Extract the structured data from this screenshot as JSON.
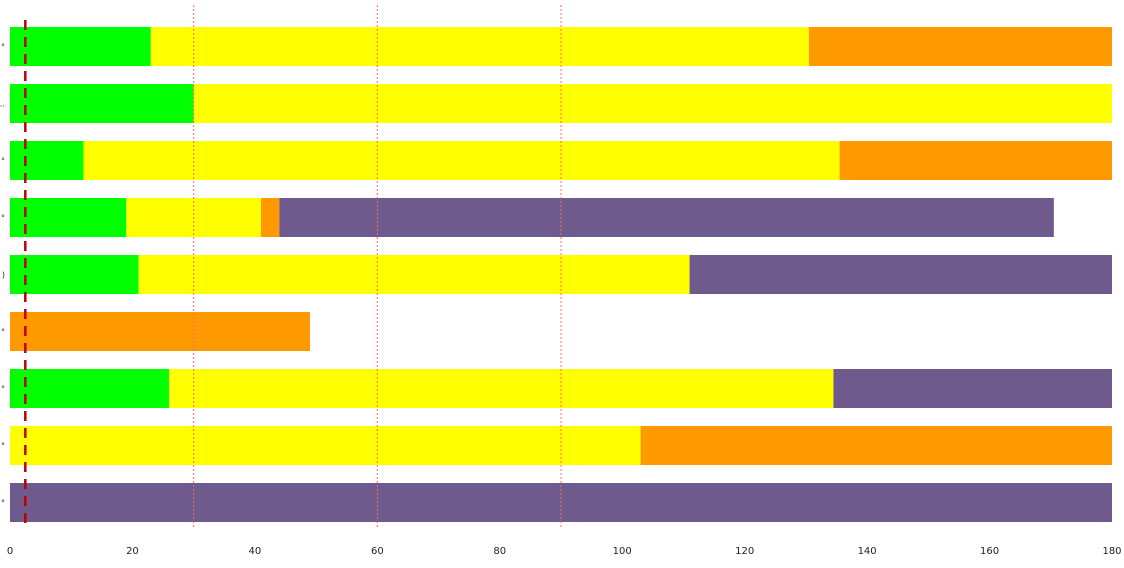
{
  "chart_data": {
    "type": "bar",
    "orientation": "horizontal",
    "stacked": true,
    "title": "",
    "xlabel": "",
    "ylabel": "",
    "xlim": [
      0,
      180
    ],
    "x_ticks": [
      0,
      20,
      40,
      60,
      80,
      100,
      120,
      140,
      160,
      180
    ],
    "row_labels": [
      "°",
      "…",
      "°",
      "°",
      ")",
      "°",
      "°",
      "°",
      "°"
    ],
    "reference_lines": [
      {
        "x": 2.5,
        "style": "dashed",
        "color": "#c00000"
      },
      {
        "x": 30,
        "style": "dotted",
        "color": "#ff6666"
      },
      {
        "x": 60,
        "style": "dotted",
        "color": "#ff6666"
      },
      {
        "x": 90,
        "style": "dotted",
        "color": "#ff6666"
      }
    ],
    "colors": {
      "green": "#00ff00",
      "yellow": "#ffff00",
      "orange": "#ff9900",
      "purple": "#6f5a8e"
    },
    "rows": [
      {
        "segments": [
          {
            "color": "green",
            "start": 0,
            "end": 23
          },
          {
            "color": "yellow",
            "start": 23,
            "end": 130.5
          },
          {
            "color": "orange",
            "start": 130.5,
            "end": 180
          }
        ]
      },
      {
        "segments": [
          {
            "color": "green",
            "start": 0,
            "end": 30
          },
          {
            "color": "yellow",
            "start": 30,
            "end": 180
          }
        ]
      },
      {
        "segments": [
          {
            "color": "green",
            "start": 0,
            "end": 12
          },
          {
            "color": "yellow",
            "start": 12,
            "end": 135.5
          },
          {
            "color": "orange",
            "start": 135.5,
            "end": 180
          }
        ]
      },
      {
        "segments": [
          {
            "color": "green",
            "start": 0,
            "end": 19
          },
          {
            "color": "yellow",
            "start": 19,
            "end": 41
          },
          {
            "color": "orange",
            "start": 41,
            "end": 44
          },
          {
            "color": "purple",
            "start": 44,
            "end": 170.5
          }
        ]
      },
      {
        "segments": [
          {
            "color": "green",
            "start": 0,
            "end": 21
          },
          {
            "color": "yellow",
            "start": 21,
            "end": 111
          },
          {
            "color": "purple",
            "start": 111,
            "end": 180
          }
        ]
      },
      {
        "segments": [
          {
            "color": "orange",
            "start": 0,
            "end": 49
          }
        ]
      },
      {
        "segments": [
          {
            "color": "green",
            "start": 0,
            "end": 26
          },
          {
            "color": "yellow",
            "start": 26,
            "end": 134.5
          },
          {
            "color": "purple",
            "start": 134.5,
            "end": 180
          }
        ]
      },
      {
        "segments": [
          {
            "color": "yellow",
            "start": 0,
            "end": 103
          },
          {
            "color": "orange",
            "start": 103,
            "end": 180
          }
        ]
      },
      {
        "segments": [
          {
            "color": "purple",
            "start": 0,
            "end": 180
          }
        ]
      }
    ]
  }
}
